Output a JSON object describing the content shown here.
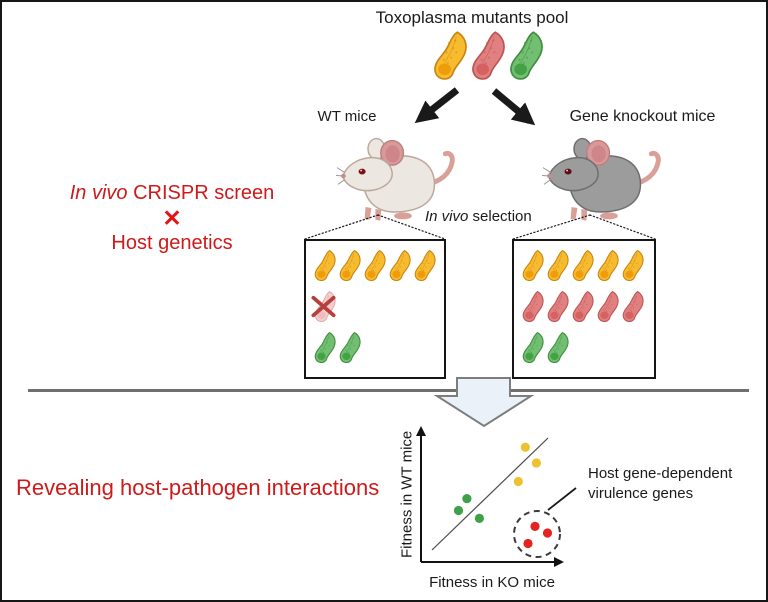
{
  "colors": {
    "heading_red": "#CE1A1A",
    "cross_red": "#E51515",
    "parasite_yellow": "#F7BB30",
    "parasite_red": "#E08080",
    "parasite_green": "#72BE72",
    "dot_yellow": "#ECC231",
    "dot_green": "#3FA04A",
    "dot_red": "#E52421",
    "divider_gray": "#6F6F6F",
    "block_arrow_fill": "#EAF1F9"
  },
  "top": {
    "title": "Toxoplasma mutants pool",
    "pool_parasites": [
      "yellow",
      "red",
      "green"
    ]
  },
  "branches": {
    "wt_label": "WT mice",
    "ko_label": "Gene knockout mice",
    "selection_italic": "In vivo",
    "selection_rest": " selection"
  },
  "left_heading": {
    "italic": "In vivo",
    "rest": " CRISPR screen",
    "cross": "✕",
    "line2": "Host genetics"
  },
  "boxes": {
    "wt": {
      "rows": [
        {
          "color": "yellow",
          "count": 5
        },
        {
          "color": "faded",
          "count": 1,
          "crossed": true
        },
        {
          "color": "green",
          "count": 2
        }
      ]
    },
    "ko": {
      "rows": [
        {
          "color": "yellow",
          "count": 5
        },
        {
          "color": "red",
          "count": 5
        },
        {
          "color": "green",
          "count": 2
        }
      ]
    }
  },
  "bottom": {
    "heading": "Revealing host-pathogen interactions"
  },
  "chart_data": {
    "type": "scatter",
    "xlabel": "Fitness in KO mice",
    "ylabel": "Fitness in WT mice",
    "annotation": "Host gene-dependent virulence genes",
    "diagonal_line": true,
    "axis_ticks": "none",
    "legend": "none",
    "series": [
      {
        "name": "yellow",
        "color": "#ECC231",
        "points": [
          [
            0.75,
            0.87
          ],
          [
            0.83,
            0.75
          ],
          [
            0.7,
            0.61
          ]
        ]
      },
      {
        "name": "green",
        "color": "#3FA04A",
        "points": [
          [
            0.33,
            0.48
          ],
          [
            0.27,
            0.39
          ],
          [
            0.42,
            0.33
          ]
        ]
      },
      {
        "name": "red (host gene-dependent virulence genes)",
        "color": "#E52421",
        "circled": true,
        "points": [
          [
            0.82,
            0.27
          ],
          [
            0.91,
            0.22
          ],
          [
            0.77,
            0.14
          ]
        ]
      }
    ]
  }
}
